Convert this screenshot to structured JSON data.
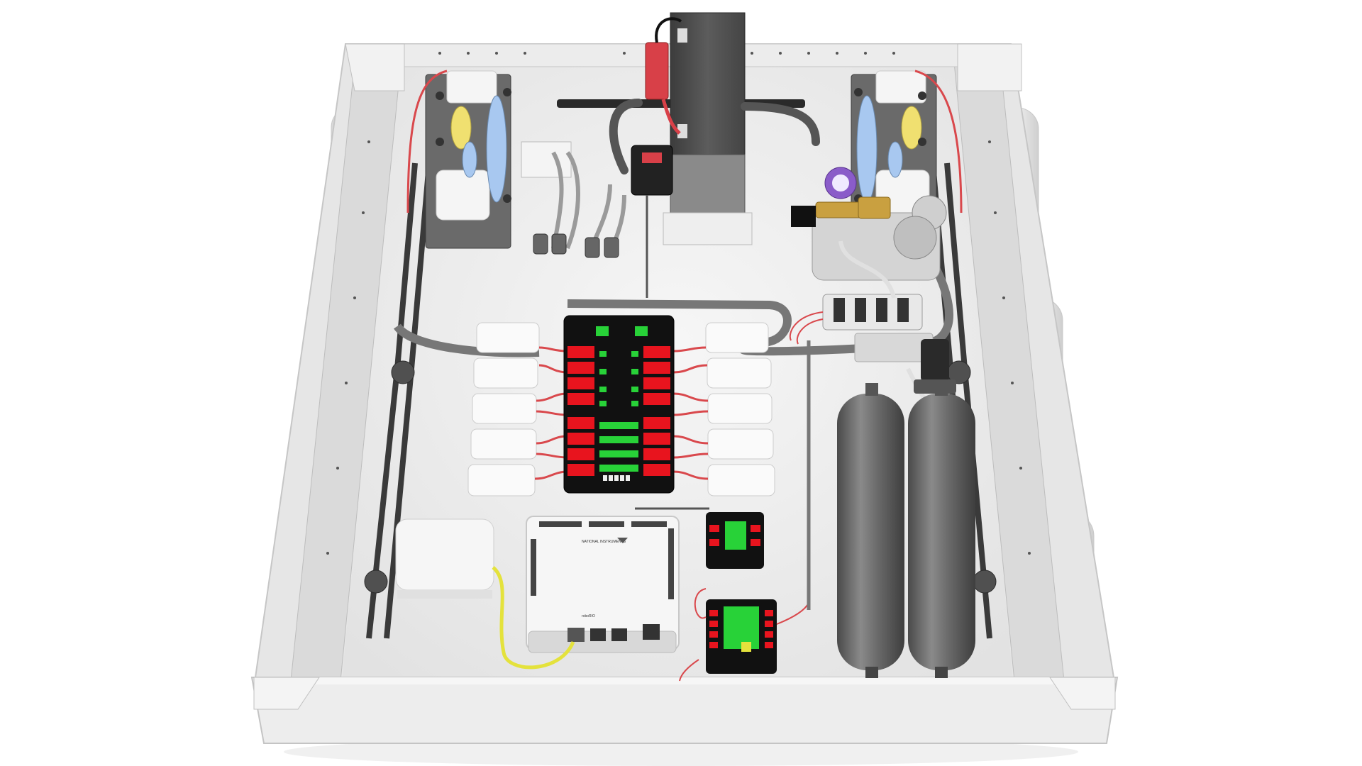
{
  "scene": {
    "subject": "robot-chassis-render",
    "colors": {
      "background": "#ffffff",
      "chassis": "#ececec",
      "chassis_floor": "#f2f2f2",
      "chassis_shadow": "#d4d4d4",
      "wheel": "#e6e6e6",
      "belt": "#3a3a3a",
      "battery": "#5a5a5a",
      "pdp_base": "#111111",
      "breaker_red": "#e8141e",
      "status_green": "#28d238",
      "wire_red": "#d9484c",
      "wire_yellow": "#e4e23c",
      "tank_gray": "#6a6a6a",
      "gauge_purple": "#8a5cc9",
      "brass": "#c9a040",
      "gear_blue": "#a8c8f0",
      "gear_yellow": "#f0e070",
      "connector_red": "#d84048"
    },
    "labels": {
      "roborio_brand": "NATIONAL INSTRUMENTS",
      "roborio_name": "roboRIO"
    }
  }
}
